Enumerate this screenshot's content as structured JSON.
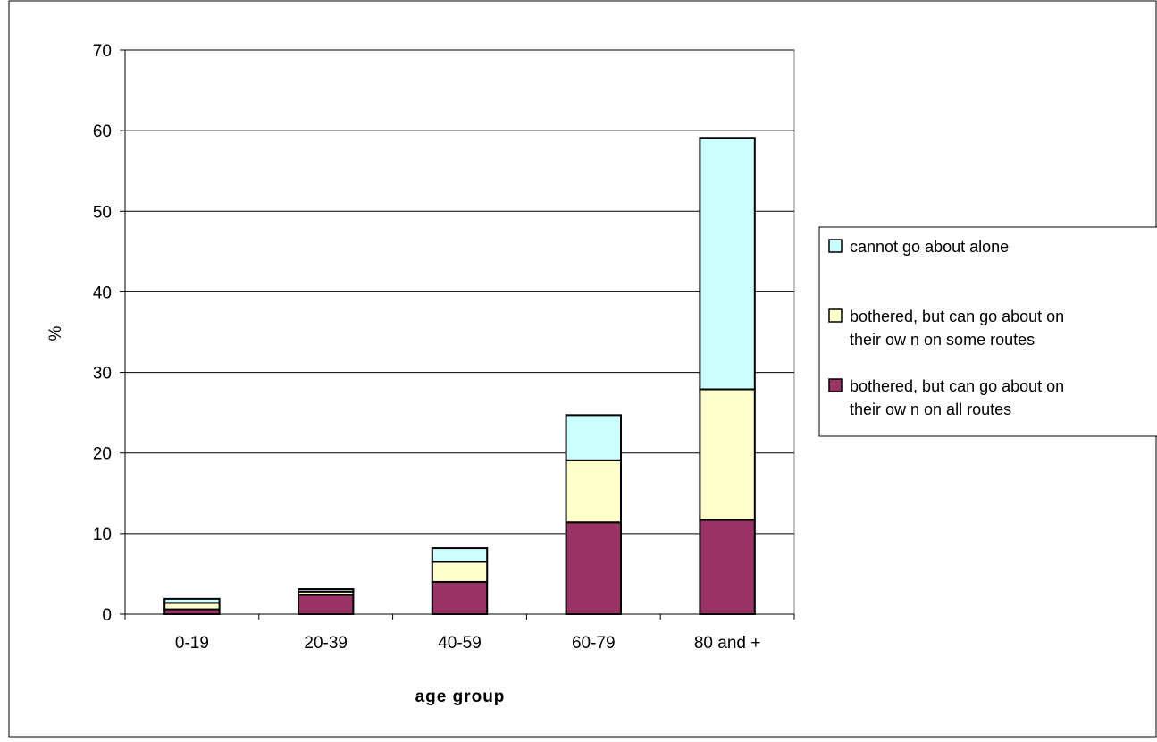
{
  "chart_data": {
    "type": "bar",
    "stacked": true,
    "title": "",
    "xlabel": "age group",
    "ylabel": "%",
    "ylim": [
      0,
      70
    ],
    "yticks": [
      "0",
      "10",
      "20",
      "30",
      "40",
      "50",
      "60",
      "70"
    ],
    "grid": true,
    "legend_position": "right",
    "categories": [
      "0-19",
      "20-39",
      "40-59",
      "60-79",
      "80 and +"
    ],
    "series": [
      {
        "name": "bothered, but can go about on their ow n on all routes",
        "lines": [
          "bothered, but can go about on",
          "their ow n on all routes"
        ],
        "color": "#993366",
        "values": [
          0.6,
          2.4,
          4.0,
          11.4,
          11.7
        ]
      },
      {
        "name": "bothered, but can go about on their ow n on some routes",
        "lines": [
          "bothered, but can go about on",
          "their ow n on some routes"
        ],
        "color": "#ffffcc",
        "values": [
          0.8,
          0.4,
          2.5,
          7.7,
          16.2
        ]
      },
      {
        "name": "cannot go about alone",
        "lines": [
          "cannot go about alone"
        ],
        "color": "#ccffff",
        "values": [
          0.5,
          0.3,
          1.7,
          5.6,
          31.2
        ]
      }
    ]
  }
}
